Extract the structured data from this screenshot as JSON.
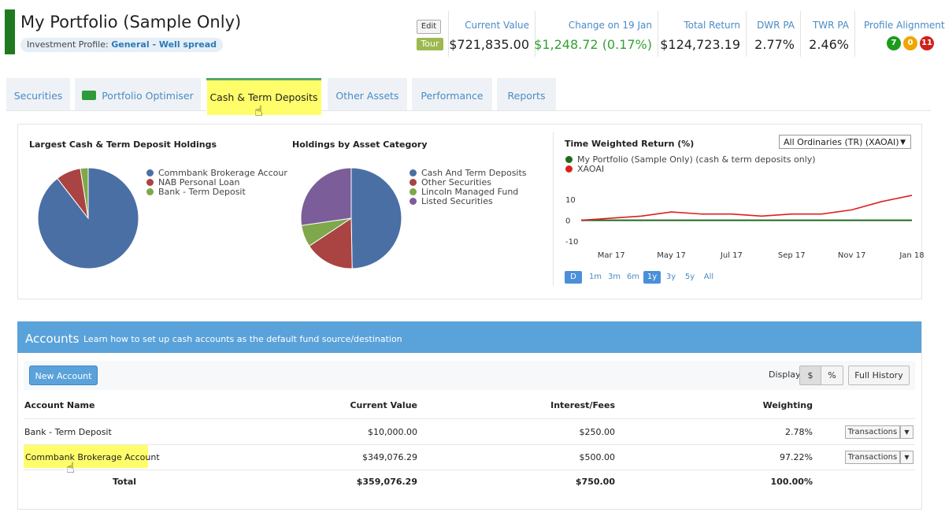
{
  "header": {
    "title": "My Portfolio (Sample Only)",
    "profile_label": "Investment Profile:",
    "profile_value": "General - Well spread",
    "edit_label": "Edit",
    "tour_label": "Tour",
    "stats": [
      {
        "label": "Current Value",
        "value": "$721,835.00"
      },
      {
        "label": "Change on 19 Jan",
        "value": "$1,248.72 (0.17%)"
      },
      {
        "label": "Total Return",
        "value": "$124,723.19"
      },
      {
        "label": "DWR PA",
        "value": "2.77%"
      },
      {
        "label": "TWR PA",
        "value": "2.46%"
      }
    ],
    "alignment_label": "Profile Alignment",
    "alignment_badges": [
      {
        "value": "7",
        "color": "#1e9a1e"
      },
      {
        "value": "0",
        "color": "#f0a500"
      },
      {
        "value": "11",
        "color": "#d0201a"
      }
    ]
  },
  "tabs": [
    {
      "label": "Securities"
    },
    {
      "label": "Portfolio Optimiser"
    },
    {
      "label": "Cash & Term Deposits"
    },
    {
      "label": "Other Assets"
    },
    {
      "label": "Performance"
    },
    {
      "label": "Reports"
    }
  ],
  "charts": {
    "holdings_title": "Largest Cash & Term Deposit Holdings",
    "holdings_legend": [
      {
        "label": "Commbank Brokerage Accour",
        "color": "#4a6fa5"
      },
      {
        "label": "NAB Personal Loan",
        "color": "#a94442"
      },
      {
        "label": "Bank - Term Deposit",
        "color": "#7ea84a"
      }
    ],
    "category_title": "Holdings by Asset Category",
    "category_legend": [
      {
        "label": "Cash And Term Deposits",
        "color": "#4a6fa5"
      },
      {
        "label": "Other Securities",
        "color": "#a94442"
      },
      {
        "label": "Lincoln Managed Fund",
        "color": "#7ea84a"
      },
      {
        "label": "Listed Securities",
        "color": "#7b5d99"
      }
    ],
    "twr_title": "Time Weighted Return (%)",
    "benchmark_select": "All Ordinaries (TR) (XAOAI)",
    "twr_legend": [
      {
        "label": "My Portfolio (Sample Only) (cash & term deposits only)",
        "color": "#1e6a1e"
      },
      {
        "label": "XAOAI",
        "color": "#dd1f1f"
      }
    ],
    "ranges": [
      "D",
      "1m",
      "3m",
      "6m",
      "1y",
      "3y",
      "5y",
      "All"
    ],
    "active_range": "1y"
  },
  "chart_data": [
    {
      "type": "pie",
      "title": "Largest Cash & Term Deposit Holdings",
      "labels": [
        "Commbank Brokerage Accour",
        "NAB Personal Loan",
        "Bank - Term Deposit"
      ],
      "values": [
        89.5,
        8.0,
        2.5
      ]
    },
    {
      "type": "pie",
      "title": "Holdings by Asset Category",
      "labels": [
        "Cash And Term Deposits",
        "Other Securities",
        "Lincoln Managed Fund",
        "Listed Securities"
      ],
      "values": [
        49.7,
        16.0,
        7.0,
        27.3
      ]
    },
    {
      "type": "line",
      "title": "Time Weighted Return (%)",
      "x": [
        "Feb 17",
        "Mar 17",
        "Apr 17",
        "May 17",
        "Jun 17",
        "Jul 17",
        "Aug 17",
        "Sep 17",
        "Oct 17",
        "Nov 17",
        "Dec 17",
        "Jan 18"
      ],
      "xticks": [
        "Mar 17",
        "May 17",
        "Jul 17",
        "Sep 17",
        "Nov 17",
        "Jan 18"
      ],
      "yticks": [
        -10,
        0,
        10
      ],
      "ylim": [
        -10,
        15
      ],
      "series": [
        {
          "name": "My Portfolio (Sample Only) (cash & term deposits only)",
          "values": [
            0,
            0,
            0,
            0,
            0,
            0,
            0,
            0,
            0,
            0,
            0,
            0
          ]
        },
        {
          "name": "XAOAI",
          "values": [
            0,
            1,
            2,
            4,
            3,
            3,
            2,
            3,
            3,
            5,
            9,
            12
          ]
        }
      ]
    }
  ],
  "accounts": {
    "title": "Accounts",
    "subtitle": "Learn how to set up cash accounts as the default fund source/destination",
    "new_account_label": "New Account",
    "display_label": "Display",
    "display_options": [
      "$",
      "%"
    ],
    "full_history_label": "Full History",
    "columns": [
      "Account Name",
      "Current Value",
      "Interest/Fees",
      "Weighting"
    ],
    "rows": [
      {
        "name": "Bank - Term Deposit",
        "value": "$10,000.00",
        "interest": "$250.00",
        "weighting": "2.78%",
        "action": "Transactions"
      },
      {
        "name": "Commbank Brokerage Account",
        "value": "$349,076.29",
        "interest": "$500.00",
        "weighting": "97.22%",
        "action": "Transactions"
      }
    ],
    "total": {
      "name": "Total",
      "value": "$359,076.29",
      "interest": "$750.00",
      "weighting": "100.00%"
    }
  }
}
